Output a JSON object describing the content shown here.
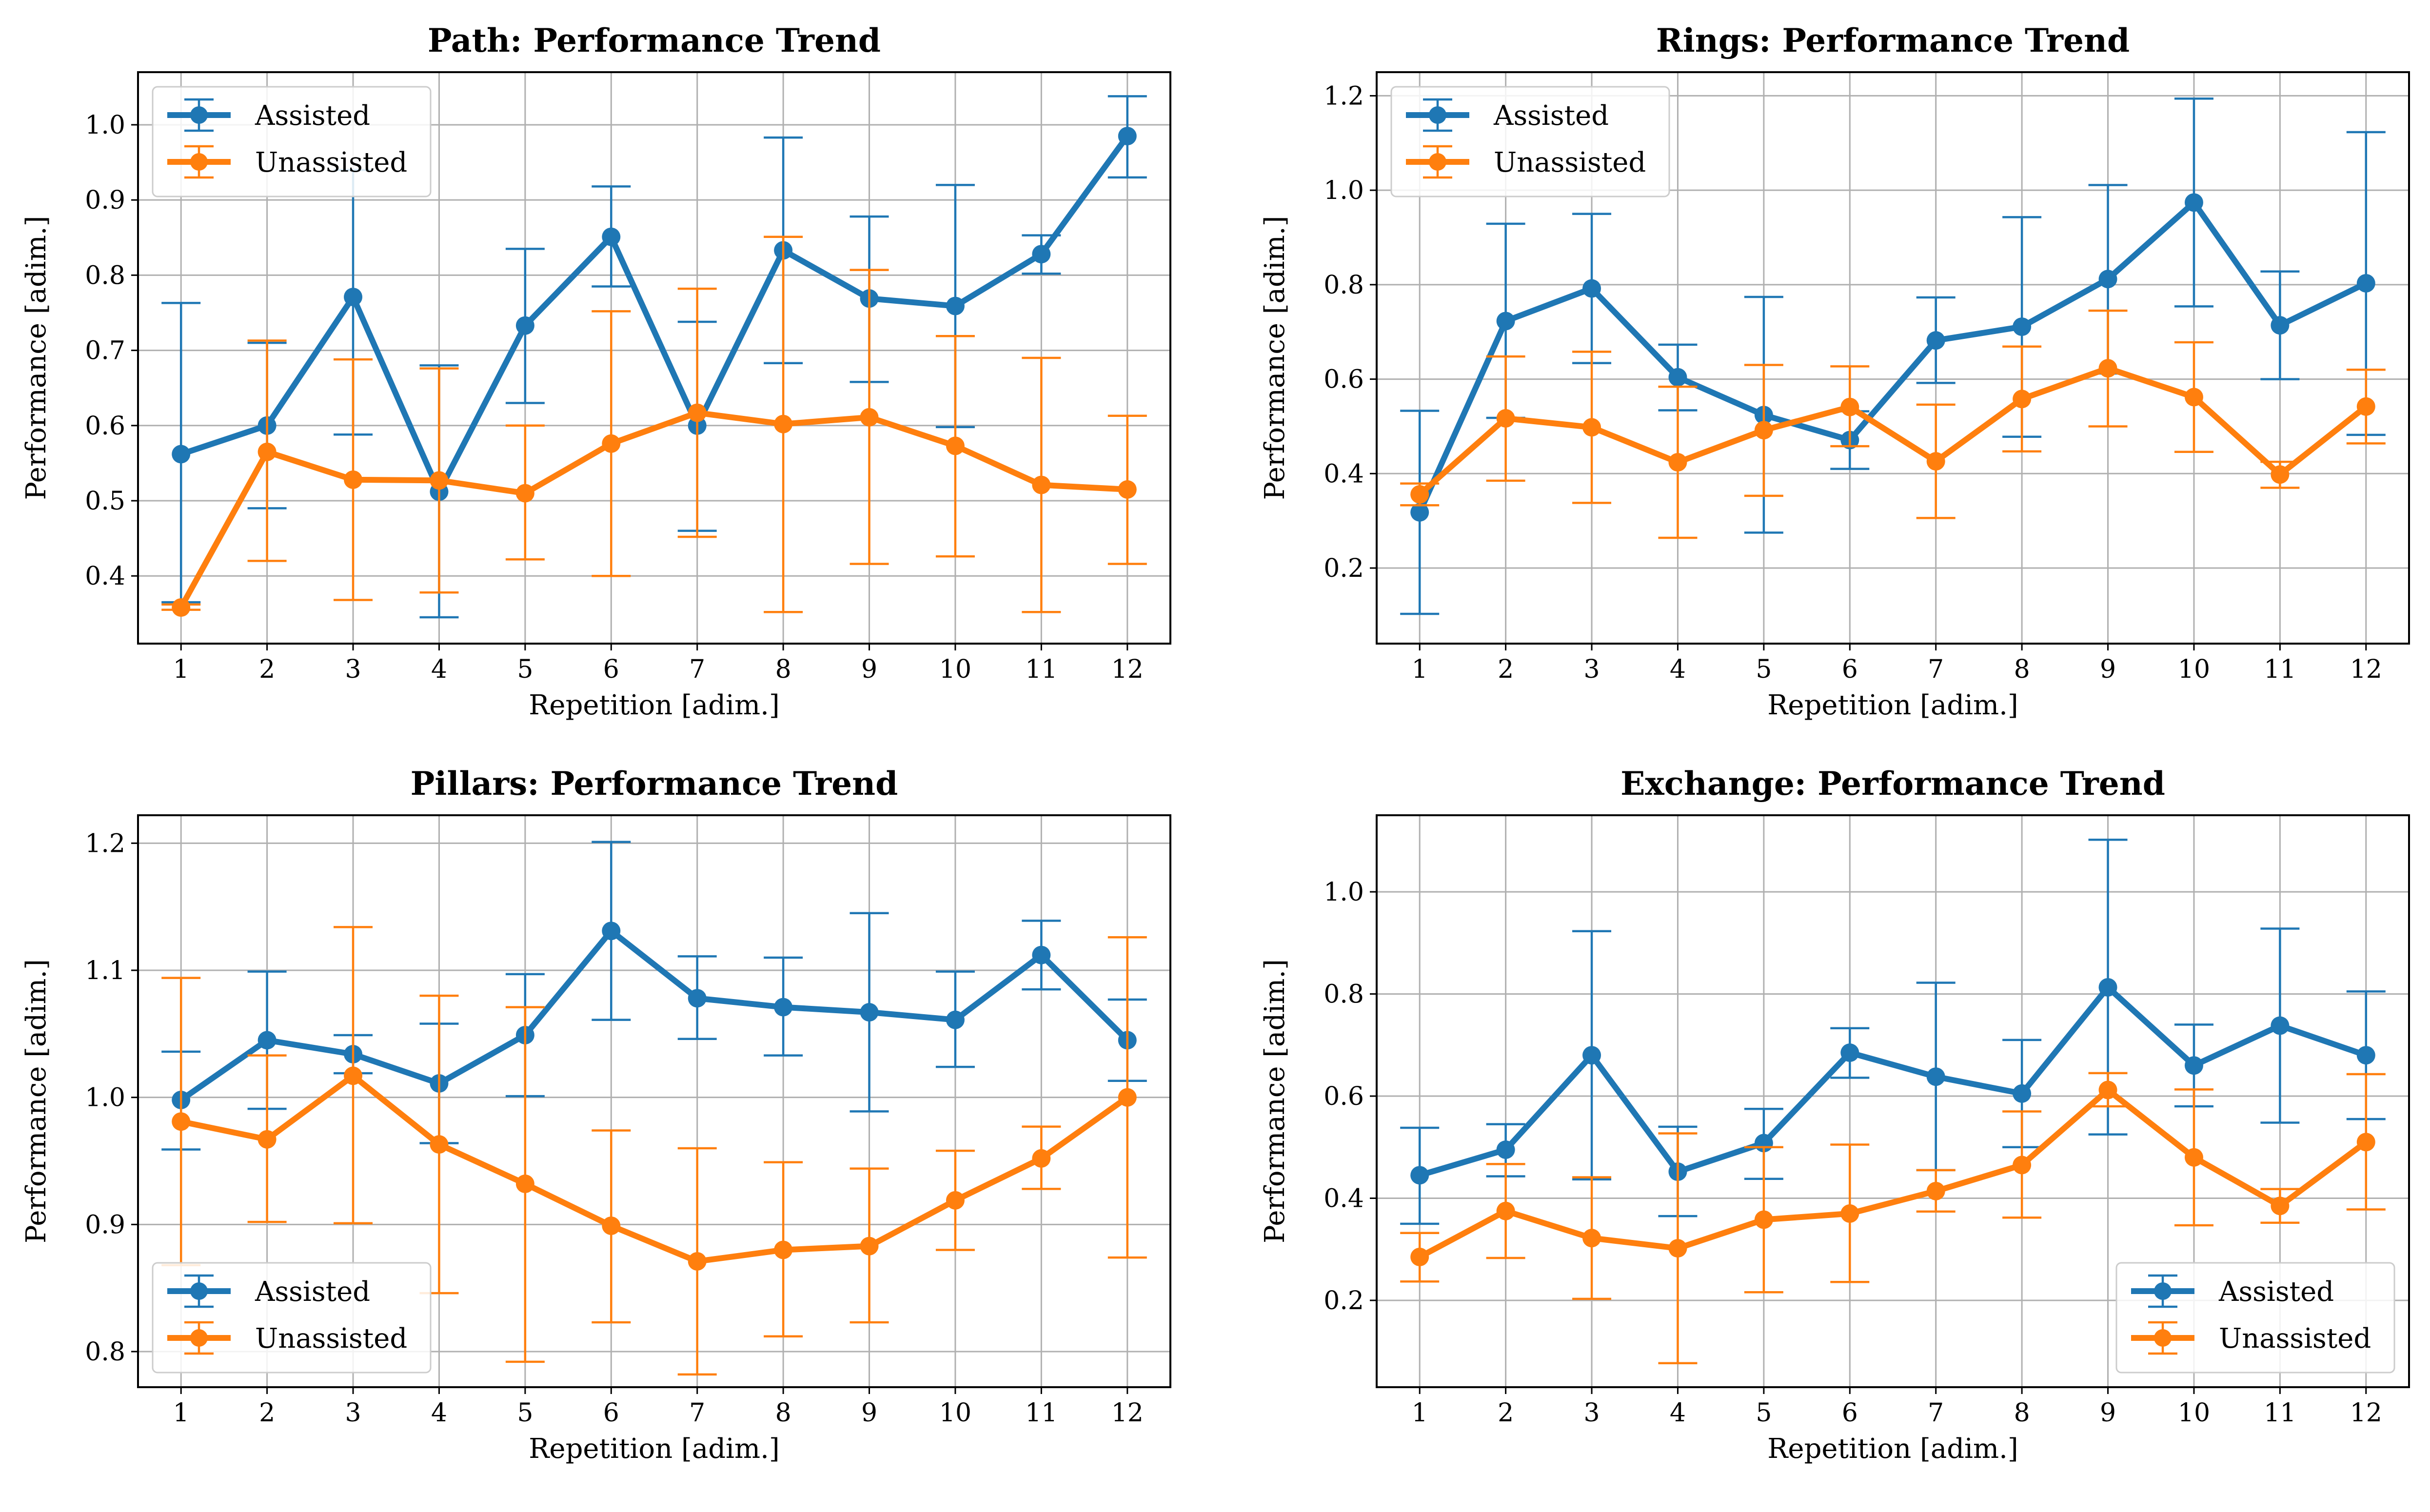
{
  "legend": {
    "assisted": "Assisted",
    "unassisted": "Unassisted"
  },
  "colors": {
    "assisted": "#1f77b4",
    "unassisted": "#ff7f0e",
    "grid": "#b0b0b0",
    "axes": "#000000"
  },
  "chart_data": [
    {
      "type": "line",
      "title": "Path: Performance Trend",
      "xlabel": "Repetition [adim.]",
      "ylabel": "Performance [adim.]",
      "x": [
        1,
        2,
        3,
        4,
        5,
        6,
        7,
        8,
        9,
        10,
        11,
        12
      ],
      "xlim": [
        0.5,
        12.5
      ],
      "ylim": [
        0.31,
        1.07
      ],
      "yticks": [
        0.4,
        0.5,
        0.6,
        0.7,
        0.8,
        0.9,
        1.0
      ],
      "ytick_labels": [
        "0.4",
        "0.5",
        "0.6",
        "0.7",
        "0.8",
        "0.9",
        "1.0"
      ],
      "grid": true,
      "legend_loc": "upper-left",
      "series": [
        {
          "name": "Assisted",
          "color": "#1f77b4",
          "values": [
            0.562,
            0.6,
            0.771,
            0.512,
            0.733,
            0.851,
            0.6,
            0.833,
            0.769,
            0.759,
            0.828,
            0.985
          ],
          "err_low": [
            0.365,
            0.49,
            0.588,
            0.345,
            0.63,
            0.785,
            0.46,
            0.683,
            0.658,
            0.598,
            0.802,
            0.93
          ],
          "err_high": [
            0.763,
            0.71,
            0.94,
            0.68,
            0.835,
            0.918,
            0.738,
            0.983,
            0.878,
            0.92,
            0.853,
            1.038
          ]
        },
        {
          "name": "Unassisted",
          "color": "#ff7f0e",
          "values": [
            0.358,
            0.565,
            0.528,
            0.527,
            0.51,
            0.576,
            0.617,
            0.602,
            0.611,
            0.573,
            0.521,
            0.515
          ],
          "err_low": [
            0.355,
            0.42,
            0.368,
            0.378,
            0.422,
            0.4,
            0.452,
            0.352,
            0.416,
            0.426,
            0.352,
            0.416
          ],
          "err_high": [
            0.362,
            0.713,
            0.688,
            0.676,
            0.6,
            0.752,
            0.782,
            0.851,
            0.807,
            0.719,
            0.69,
            0.613
          ]
        }
      ]
    },
    {
      "type": "line",
      "title": "Rings: Performance Trend",
      "xlabel": "Repetition [adim.]",
      "ylabel": "Performance [adim.]",
      "x": [
        1,
        2,
        3,
        4,
        5,
        6,
        7,
        8,
        9,
        10,
        11,
        12
      ],
      "xlim": [
        0.5,
        12.5
      ],
      "ylim": [
        0.04,
        1.25
      ],
      "yticks": [
        0.2,
        0.4,
        0.6,
        0.8,
        1.0,
        1.2
      ],
      "ytick_labels": [
        "0.2",
        "0.4",
        "0.6",
        "0.8",
        "1.0",
        "1.2"
      ],
      "grid": true,
      "legend_loc": "upper-left",
      "series": [
        {
          "name": "Assisted",
          "color": "#1f77b4",
          "values": [
            0.318,
            0.723,
            0.792,
            0.604,
            0.524,
            0.471,
            0.682,
            0.711,
            0.812,
            0.974,
            0.714,
            0.803
          ],
          "err_low": [
            0.103,
            0.518,
            0.634,
            0.534,
            0.275,
            0.41,
            0.592,
            0.478,
            0.612,
            0.754,
            0.6,
            0.482
          ],
          "err_high": [
            0.533,
            0.929,
            0.95,
            0.673,
            0.774,
            0.532,
            0.773,
            0.943,
            1.011,
            1.194,
            0.828,
            1.123
          ]
        },
        {
          "name": "Unassisted",
          "color": "#ff7f0e",
          "values": [
            0.356,
            0.517,
            0.498,
            0.424,
            0.492,
            0.541,
            0.426,
            0.558,
            0.623,
            0.562,
            0.398,
            0.542
          ],
          "err_low": [
            0.333,
            0.385,
            0.338,
            0.264,
            0.353,
            0.458,
            0.306,
            0.447,
            0.5,
            0.446,
            0.37,
            0.464
          ],
          "err_high": [
            0.379,
            0.648,
            0.658,
            0.584,
            0.63,
            0.627,
            0.546,
            0.669,
            0.745,
            0.678,
            0.425,
            0.62
          ]
        }
      ]
    },
    {
      "type": "line",
      "title": "Pillars: Performance Trend",
      "xlabel": "Repetition [adim.]",
      "ylabel": "Performance [adim.]",
      "x": [
        1,
        2,
        3,
        4,
        5,
        6,
        7,
        8,
        9,
        10,
        11,
        12
      ],
      "xlim": [
        0.5,
        12.5
      ],
      "ylim": [
        0.772,
        1.222
      ],
      "yticks": [
        0.8,
        0.9,
        1.0,
        1.1,
        1.2
      ],
      "ytick_labels": [
        "0.8",
        "0.9",
        "1.0",
        "1.1",
        "1.2"
      ],
      "grid": true,
      "legend_loc": "lower-left",
      "series": [
        {
          "name": "Assisted",
          "color": "#1f77b4",
          "values": [
            0.998,
            1.045,
            1.034,
            1.011,
            1.049,
            1.131,
            1.078,
            1.071,
            1.067,
            1.061,
            1.112,
            1.045
          ],
          "err_low": [
            0.959,
            0.991,
            1.019,
            0.964,
            1.001,
            1.061,
            1.046,
            1.033,
            0.989,
            1.024,
            1.085,
            1.013
          ],
          "err_high": [
            1.036,
            1.099,
            1.049,
            1.058,
            1.097,
            1.201,
            1.111,
            1.11,
            1.145,
            1.099,
            1.139,
            1.077
          ]
        },
        {
          "name": "Unassisted",
          "color": "#ff7f0e",
          "values": [
            0.981,
            0.967,
            1.017,
            0.963,
            0.932,
            0.899,
            0.871,
            0.88,
            0.883,
            0.919,
            0.952,
            1.0
          ],
          "err_low": [
            0.868,
            0.902,
            0.901,
            0.846,
            0.792,
            0.823,
            0.782,
            0.812,
            0.823,
            0.88,
            0.928,
            0.874
          ],
          "err_high": [
            1.094,
            1.033,
            1.134,
            1.08,
            1.071,
            0.974,
            0.96,
            0.949,
            0.944,
            0.958,
            0.977,
            1.126
          ]
        }
      ]
    },
    {
      "type": "line",
      "title": "Exchange: Performance Trend",
      "xlabel": "Repetition [adim.]",
      "ylabel": "Performance [adim.]",
      "x": [
        1,
        2,
        3,
        4,
        5,
        6,
        7,
        8,
        9,
        10,
        11,
        12
      ],
      "xlim": [
        0.5,
        12.5
      ],
      "ylim": [
        0.03,
        1.15
      ],
      "yticks": [
        0.2,
        0.4,
        0.6,
        0.8,
        1.0
      ],
      "ytick_labels": [
        "0.2",
        "0.4",
        "0.6",
        "0.8",
        "1.0"
      ],
      "grid": true,
      "legend_loc": "lower-right",
      "series": [
        {
          "name": "Assisted",
          "color": "#1f77b4",
          "values": [
            0.445,
            0.495,
            0.68,
            0.452,
            0.508,
            0.685,
            0.638,
            0.605,
            0.813,
            0.66,
            0.738,
            0.68
          ],
          "err_low": [
            0.35,
            0.443,
            0.437,
            0.365,
            0.438,
            0.636,
            0.455,
            0.5,
            0.525,
            0.58,
            0.548,
            0.555
          ],
          "err_high": [
            0.538,
            0.545,
            0.923,
            0.54,
            0.575,
            0.733,
            0.822,
            0.71,
            1.102,
            0.74,
            0.928,
            0.805
          ]
        },
        {
          "name": "Unassisted",
          "color": "#ff7f0e",
          "values": [
            0.285,
            0.375,
            0.322,
            0.302,
            0.358,
            0.37,
            0.414,
            0.465,
            0.612,
            0.48,
            0.385,
            0.51
          ],
          "err_low": [
            0.237,
            0.283,
            0.203,
            0.077,
            0.216,
            0.236,
            0.374,
            0.362,
            0.58,
            0.347,
            0.352,
            0.378
          ],
          "err_high": [
            0.332,
            0.467,
            0.441,
            0.527,
            0.5,
            0.505,
            0.455,
            0.57,
            0.645,
            0.613,
            0.418,
            0.643
          ]
        }
      ]
    }
  ]
}
